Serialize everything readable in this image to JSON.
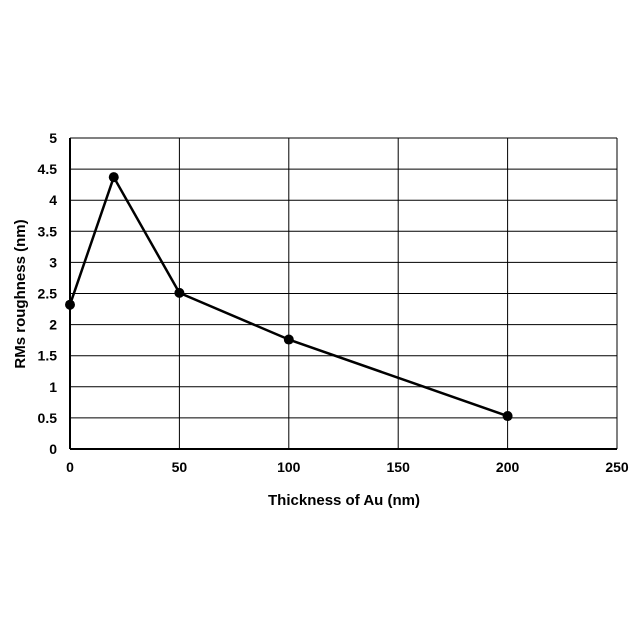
{
  "chart_data": {
    "type": "line",
    "xlabel": "Thickness of Au (nm)",
    "ylabel": "RMs roughness (nm)",
    "xlim": [
      0,
      250
    ],
    "ylim": [
      0,
      5
    ],
    "x_ticks": [
      "0",
      "50",
      "100",
      "150",
      "200",
      "250"
    ],
    "y_ticks": [
      "0",
      "0.5",
      "1",
      "1.5",
      "2",
      "2.5",
      "3",
      "3.5",
      "4",
      "4.5",
      "5"
    ],
    "grid": true,
    "series": [
      {
        "x": [
          0,
          20,
          50,
          100,
          200
        ],
        "y": [
          2.32,
          4.37,
          2.51,
          1.76,
          0.53
        ]
      }
    ],
    "colors": {
      "line": "#000000",
      "grid": "#000000"
    }
  }
}
